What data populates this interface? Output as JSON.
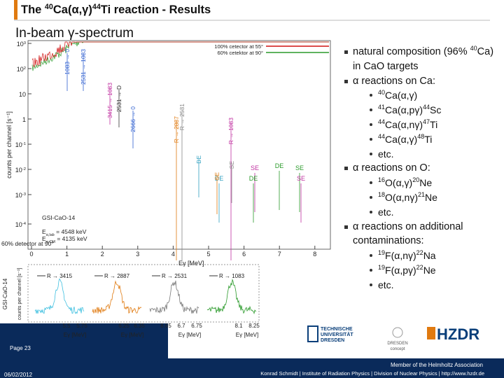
{
  "header": {
    "title": [
      "The ",
      {
        "sup": "40"
      },
      "Ca(α,γ)",
      {
        "sup": "44"
      },
      "Ti reaction - Results"
    ],
    "subtitle": "In-beam γ-spectrum"
  },
  "plot": {
    "yticks": [
      [
        "10",
        {
          "sup": "3"
        }
      ],
      [
        "10",
        {
          "sup": "2"
        }
      ],
      [
        "10"
      ],
      [
        "1"
      ],
      [
        "10",
        {
          "sup": "-1"
        }
      ],
      [
        "10",
        {
          "sup": "-2"
        }
      ],
      [
        "10",
        {
          "sup": "-3"
        }
      ],
      [
        "10",
        {
          "sup": "-4"
        }
      ]
    ],
    "xticks": [
      "0",
      "1",
      "2",
      "3",
      "4",
      "5",
      "6",
      "7",
      "8"
    ],
    "ylabel": "counts per channel [s⁻¹]",
    "xlabel": "Eγ [MeV]",
    "legend": [
      "100% cetector at 55°",
      "60% cetektor at 90°"
    ],
    "info": [
      "GSI-CaO-14",
      [
        "E",
        {
          "sub": "α,lab"
        },
        " = 4548 keV"
      ],
      [
        "E",
        {
          "sub": "α,CM"
        },
        " = 4135 keV"
      ]
    ],
    "annotations": [
      "1083 → 0",
      "2531 → 1083",
      "3415 → 1083",
      "2531 → D",
      "2666 → 0",
      "R → 2887",
      "R → 2531",
      "R → 1083",
      "DE",
      "DE",
      "SE",
      "SE",
      "SE",
      "DE",
      "SE",
      "DE",
      "SE"
    ],
    "detector_note": "60% detector at 90°"
  },
  "insets": {
    "ylabel": "counts per channel [s⁻¹]",
    "tag": "GSI-CaO-14",
    "panels": [
      {
        "label": "R → 3415",
        "ticks": [
          "5.5",
          "5.75"
        ],
        "xlabel": "Eγ [MeV]"
      },
      {
        "label": "R → 2887",
        "ticks": [
          "6.25",
          "6.35"
        ],
        "xlabel": "Eγ [MeV]"
      },
      {
        "label": "R → 2531",
        "ticks": [
          "8.65",
          "6.7",
          "6.75"
        ],
        "xlabel": "Eγ [MeV]"
      },
      {
        "label": "R → 1083",
        "ticks": [
          "8.1",
          "8.25"
        ],
        "xlabel": "Eγ [MeV]"
      }
    ]
  },
  "bullets": [
    {
      "level": 1,
      "parts": [
        "natural composition (96% ",
        {
          "sup": "40"
        },
        "Ca) in CaO targets"
      ]
    },
    {
      "level": 1,
      "parts": [
        "α reactions on Ca:"
      ]
    },
    {
      "level": 2,
      "parts": [
        {
          "sup": "40"
        },
        "Ca(α,γ)"
      ]
    },
    {
      "level": 2,
      "parts": [
        {
          "sup": "41"
        },
        "Ca(α,pγ)",
        {
          "sup": "44"
        },
        "Sc"
      ]
    },
    {
      "level": 2,
      "parts": [
        {
          "sup": "44"
        },
        "Ca(α,nγ)",
        {
          "sup": "47"
        },
        "Ti"
      ]
    },
    {
      "level": 2,
      "parts": [
        {
          "sup": "44"
        },
        "Ca(α,γ)",
        {
          "sup": "48"
        },
        "Ti"
      ]
    },
    {
      "level": 2,
      "parts": [
        "etc."
      ]
    },
    {
      "level": 1,
      "parts": [
        "α reactions on O:"
      ]
    },
    {
      "level": 2,
      "parts": [
        {
          "sup": "16"
        },
        "O(α,γ)",
        {
          "sup": "20"
        },
        "Ne"
      ]
    },
    {
      "level": 2,
      "parts": [
        {
          "sup": "18"
        },
        "O(α,nγ)",
        {
          "sup": "21"
        },
        "Ne"
      ]
    },
    {
      "level": 2,
      "parts": [
        "etc."
      ]
    },
    {
      "level": 1,
      "parts": [
        "α reactions on additional contaminations:"
      ]
    },
    {
      "level": 2,
      "parts": [
        {
          "sup": "19"
        },
        "F(α,nγ)",
        {
          "sup": "22"
        },
        "Na"
      ]
    },
    {
      "level": 2,
      "parts": [
        {
          "sup": "19"
        },
        "F(α,pγ)",
        {
          "sup": "22"
        },
        "Ne"
      ]
    },
    {
      "level": 2,
      "parts": [
        "etc."
      ]
    }
  ],
  "footer": {
    "page": "Page 23",
    "date": "06/02/2012",
    "tu": [
      "TECHNISCHE",
      "UNIVERSITÄT",
      "DRESDEN"
    ],
    "concept": [
      "DRESDEN",
      "concept"
    ],
    "hzdr": "HZDR",
    "member": "Member of the Helmholtz Association",
    "credits": "Konrad Schmidt | Institute of Radiation Physics | Division of Nuclear Physics | http://www.hzdr.de"
  }
}
